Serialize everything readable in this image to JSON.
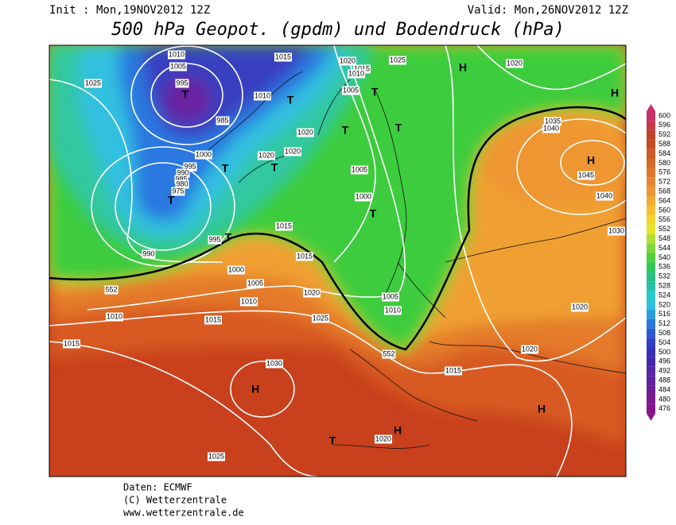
{
  "header": {
    "init": "Init : Mon,19NOV2012 12Z",
    "valid": "Valid: Mon,26NOV2012 12Z",
    "title": "500 hPa Geopot. (gpdm) und Bodendruck (hPa)"
  },
  "legend": {
    "labels": [
      "600",
      "596",
      "592",
      "588",
      "584",
      "580",
      "576",
      "572",
      "568",
      "564",
      "560",
      "556",
      "552",
      "548",
      "544",
      "540",
      "536",
      "532",
      "528",
      "524",
      "520",
      "516",
      "512",
      "508",
      "504",
      "500",
      "496",
      "492",
      "488",
      "484",
      "480",
      "476"
    ],
    "colors": [
      "#c8306a",
      "#c83848",
      "#c04028",
      "#c84a20",
      "#d05a24",
      "#d86828",
      "#e0762c",
      "#e88430",
      "#ee9632",
      "#f2aa30",
      "#f4c02e",
      "#f2d62a",
      "#e6e628",
      "#b0e034",
      "#7cd83a",
      "#4cd03c",
      "#30c858",
      "#28c080",
      "#28c0a8",
      "#28c8cc",
      "#30c0e0",
      "#2c9ce0",
      "#2878e0",
      "#2c58d8",
      "#3040c8",
      "#3830b8",
      "#4228b0",
      "#5028a8",
      "#6020a0",
      "#701c98",
      "#7c1890",
      "#881488"
    ]
  },
  "map": {
    "isobar_labels": [
      "1010",
      "1005",
      "995",
      "1025",
      "985",
      "1010",
      "1015",
      "1020",
      "1015",
      "1010",
      "1025",
      "1020",
      "1005",
      "1020",
      "1020",
      "1020",
      "1000",
      "995",
      "990",
      "985",
      "980",
      "975",
      "1005",
      "1000",
      "995",
      "990",
      "1015",
      "1015",
      "1000",
      "1005",
      "1010",
      "1020",
      "1010",
      "1015",
      "1025",
      "1015",
      "1005",
      "1010",
      "1035",
      "1040",
      "1045",
      "1040",
      "1030",
      "1020",
      "1020",
      "1015",
      "1030",
      "1020",
      "1025"
    ],
    "contour_labels": [
      "552",
      "552"
    ],
    "pressure_centers": [
      "T",
      "T",
      "H",
      "H",
      "T",
      "T",
      "T",
      "H",
      "T",
      "T",
      "T",
      "T",
      "T",
      "H",
      "H",
      "H",
      "T"
    ]
  },
  "footer": {
    "lines": [
      "Daten: ECMWF",
      "(C) Wetterzentrale",
      "www.wetterzentrale.de"
    ]
  }
}
